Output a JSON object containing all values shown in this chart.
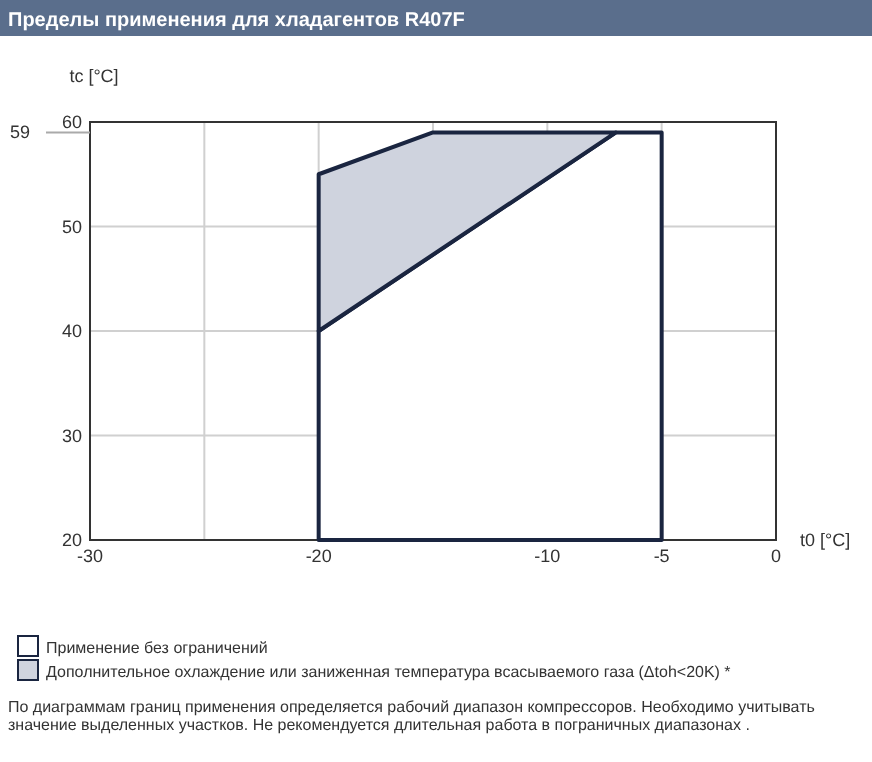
{
  "chart_data": {
    "type": "area",
    "title": "Пределы применения для хладагентов R407F",
    "xlabel": "t0 [°C]",
    "ylabel": "tc [°C]",
    "series": [
      {
        "name": "Применение без ограничений",
        "color": "#ffffff",
        "x": [
          -20,
          -20,
          -7,
          -5,
          -5,
          -20
        ],
        "values": [
          20,
          40,
          59,
          59,
          20,
          20
        ]
      },
      {
        "name": "Дополнительное охлаждение или заниженная температура всасываемого газа (Δtoh<20K) *",
        "color": "#cfd3de",
        "x": [
          -20,
          -20,
          -15,
          -7,
          -20
        ],
        "values": [
          40,
          55,
          59,
          59,
          40
        ]
      }
    ],
    "xlim": [
      -30,
      0
    ],
    "xticks": [
      -30,
      {
        "value": -25,
        "label": null
      },
      -20,
      {
        "value": -15,
        "label": null
      },
      -10,
      -5,
      0
    ],
    "ylim": [
      20,
      60
    ],
    "yticks": [
      20,
      30,
      40,
      50,
      60
    ],
    "ref_lines": [
      {
        "axis": "y",
        "value": 59,
        "label": "59"
      }
    ],
    "grid": true,
    "legend": "bottom",
    "annotations": [
      "По диаграммам границ применения определяется рабочий диапазон компрессоров. Необходимо учитывать значение выделенных участков. Не рекомендуется длительная работа в пограничных диапазонах ."
    ]
  }
}
